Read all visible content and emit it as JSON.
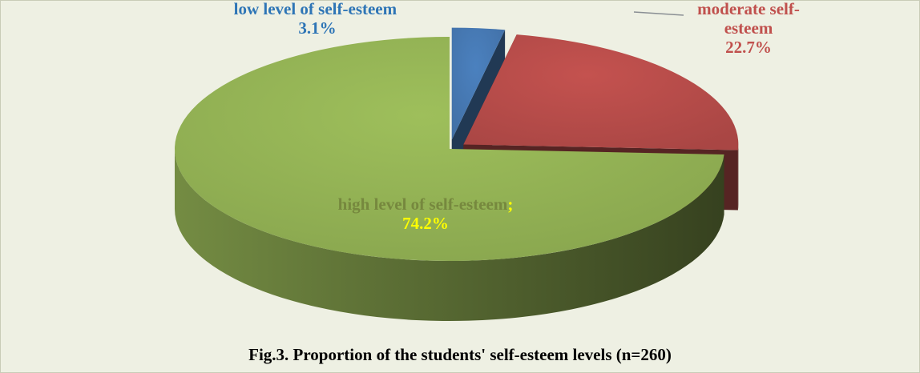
{
  "chart_data": {
    "type": "pie",
    "title": "Fig.3. Proportion of the students' self-esteem levels (n=260)",
    "categories": [
      "low level of self-esteem",
      "moderate self-esteem",
      "high level of self-esteem"
    ],
    "values": [
      3.1,
      22.7,
      74.2
    ],
    "value_labels": [
      "3.1%",
      "22.7%",
      "; 74.2%"
    ],
    "colors": [
      "#4a7ebb",
      "#c0504d",
      "#9bbb59"
    ]
  }
}
